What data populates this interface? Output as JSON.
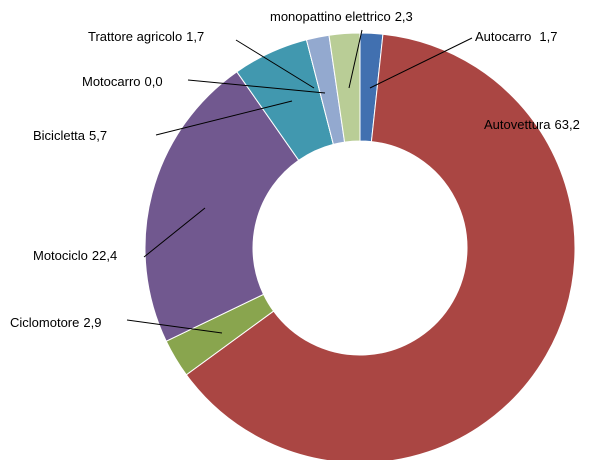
{
  "chart_data": {
    "type": "donut",
    "categories": [
      "Autocarro",
      "Autovettura",
      "Ciclomotore",
      "Motociclo",
      "Bicicletta",
      "Motocarro",
      "Trattore agricolo",
      "monopattino elettrico"
    ],
    "values": [
      1.7,
      63.2,
      2.9,
      22.4,
      5.7,
      0.0,
      1.7,
      2.3
    ],
    "value_labels": [
      "1,7",
      "63,2",
      "2,9",
      "22,4",
      "5,7",
      "0,0",
      "1,7",
      "2,3"
    ],
    "colors": [
      "#4170b0",
      "#aa4643",
      "#89a54e",
      "#71588f",
      "#4198af",
      "#db843d",
      "#93a9cf",
      "#b9cd96"
    ]
  }
}
